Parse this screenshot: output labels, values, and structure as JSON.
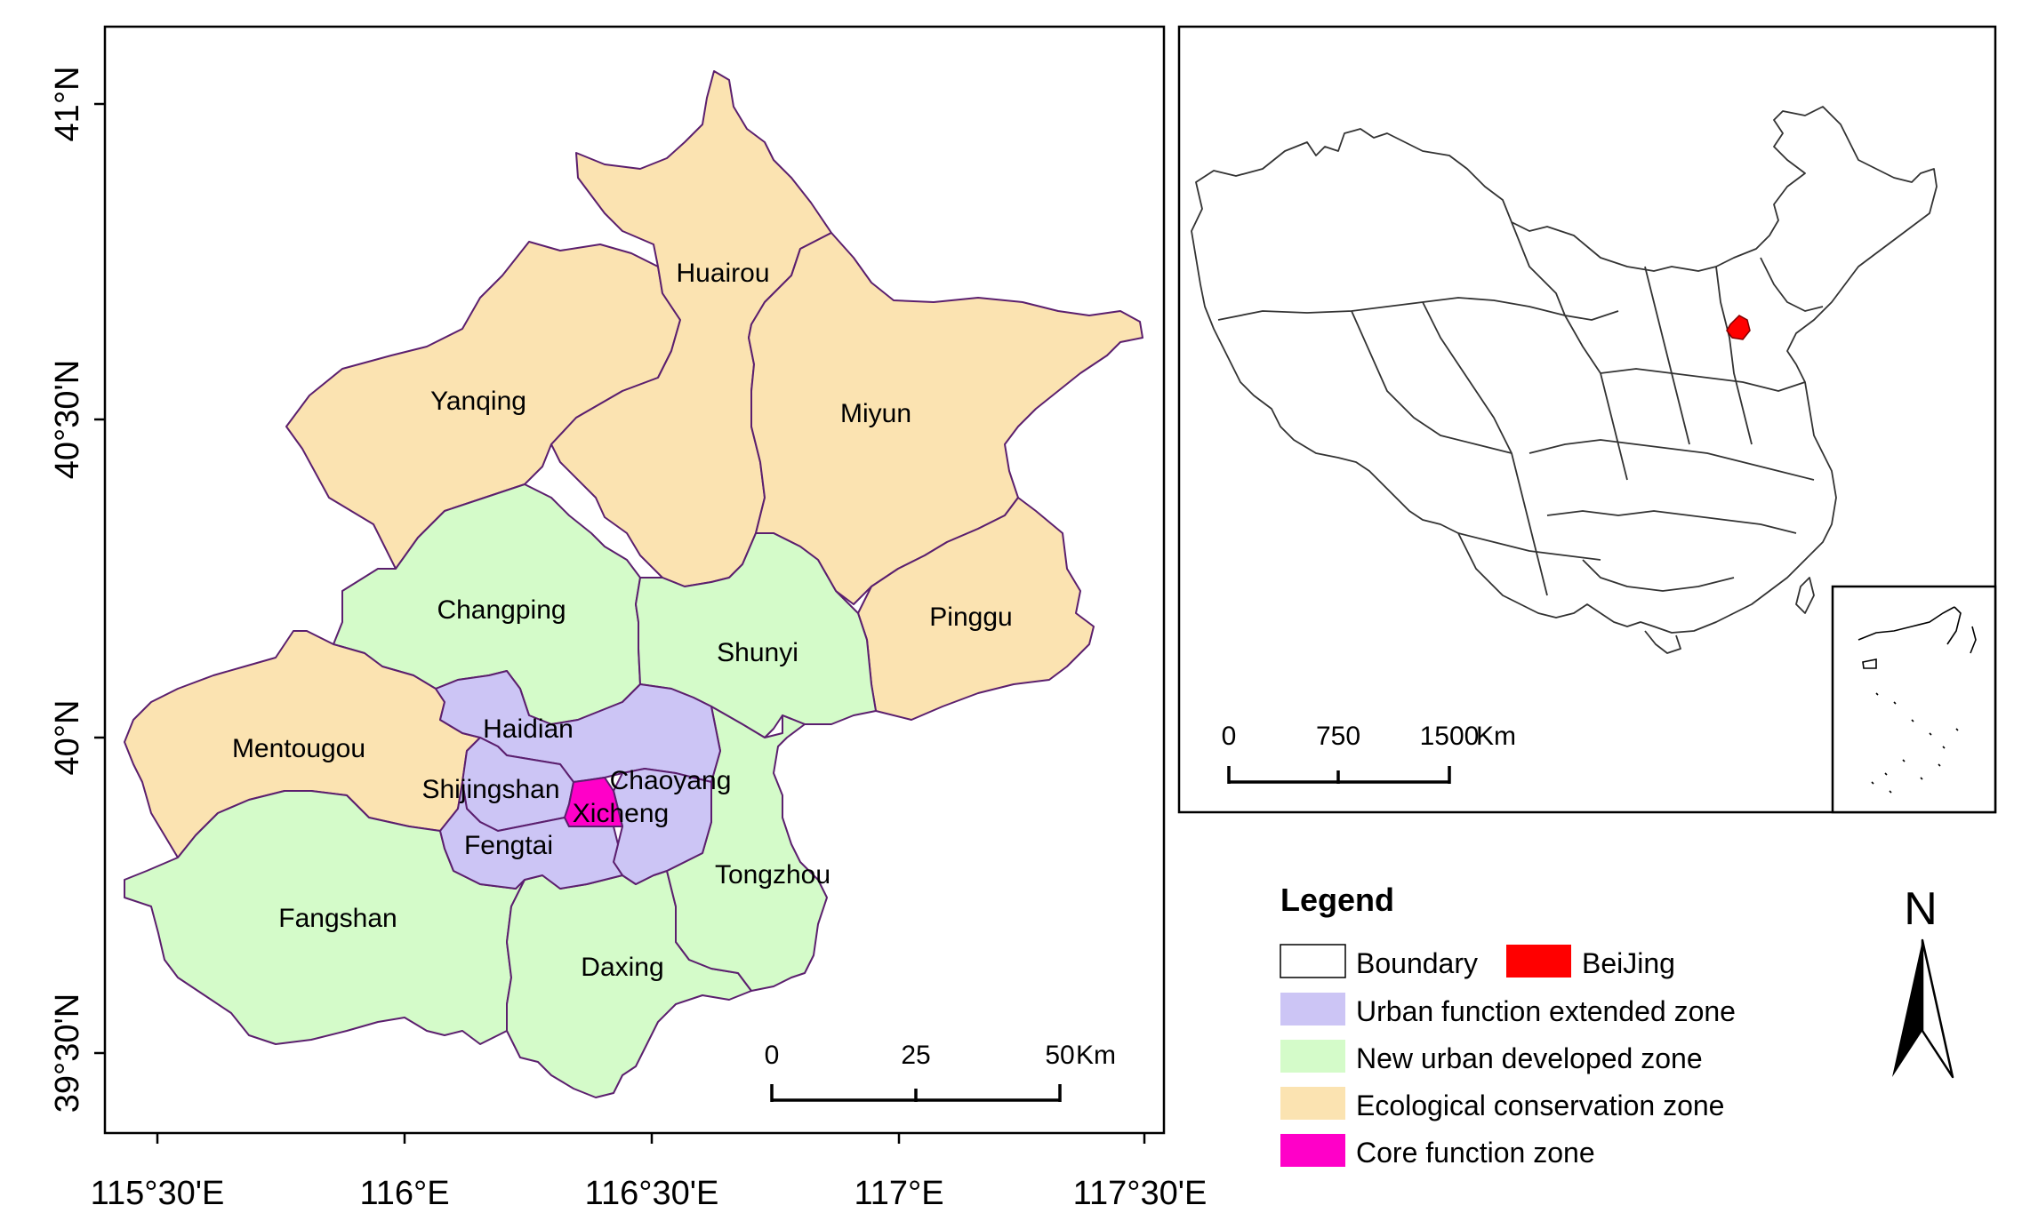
{
  "main_map": {
    "districts": [
      {
        "key": "yanqing",
        "name": "Yanqing",
        "zone": "ecological"
      },
      {
        "key": "huairou",
        "name": "Huairou",
        "zone": "ecological"
      },
      {
        "key": "miyun",
        "name": "Miyun",
        "zone": "ecological"
      },
      {
        "key": "pinggu",
        "name": "Pinggu",
        "zone": "ecological"
      },
      {
        "key": "mentougou",
        "name": "Mentougou",
        "zone": "ecological"
      },
      {
        "key": "changping",
        "name": "Changping",
        "zone": "new_urban"
      },
      {
        "key": "shunyi",
        "name": "Shunyi",
        "zone": "new_urban"
      },
      {
        "key": "fangshan",
        "name": "Fangshan",
        "zone": "new_urban"
      },
      {
        "key": "daxing",
        "name": "Daxing",
        "zone": "new_urban"
      },
      {
        "key": "tongzhou",
        "name": "Tongzhou",
        "zone": "new_urban"
      },
      {
        "key": "haidian",
        "name": "Haidian",
        "zone": "urban_extended"
      },
      {
        "key": "chaoyang",
        "name": "Chaoyang",
        "zone": "urban_extended"
      },
      {
        "key": "shijingshan",
        "name": "Shijingshan",
        "zone": "urban_extended"
      },
      {
        "key": "fengtai",
        "name": "Fengtai",
        "zone": "urban_extended"
      },
      {
        "key": "xicheng",
        "name": "Xicheng",
        "zone": "core"
      }
    ],
    "lat_labels": [
      "41°N",
      "40°30'N",
      "40°N",
      "39°30'N"
    ],
    "lon_labels": [
      "115°30'E",
      "116°E",
      "116°30'E",
      "117°E",
      "117°30'E"
    ],
    "scale_bar": {
      "ticks": [
        "0",
        "25",
        "50"
      ],
      "unit": "Km"
    }
  },
  "inset_map": {
    "highlight": "BeiJing",
    "scale_bar": {
      "ticks": [
        "0",
        "750",
        "1500"
      ],
      "unit": "Km"
    }
  },
  "legend": {
    "title": "Legend",
    "items": [
      {
        "label": "Boundary",
        "color": "#ffffff"
      },
      {
        "label": "BeiJing",
        "color": "#ff0000"
      },
      {
        "label": "Urban function extended zone",
        "color": "#ccc5f5"
      },
      {
        "label": "New urban developed zone",
        "color": "#d4fbc9"
      },
      {
        "label": "Ecological conservation zone",
        "color": "#fbe3b1"
      },
      {
        "label": "Core function zone",
        "color": "#ff00c8"
      }
    ]
  },
  "north_arrow": {
    "label": "N"
  },
  "colors": {
    "ecological": "#fbe3b1",
    "new_urban": "#d4fbc9",
    "urban_extended": "#ccc5f5",
    "core": "#ff00c8",
    "border": "#5b1f6e",
    "beijing": "#ff0000"
  }
}
